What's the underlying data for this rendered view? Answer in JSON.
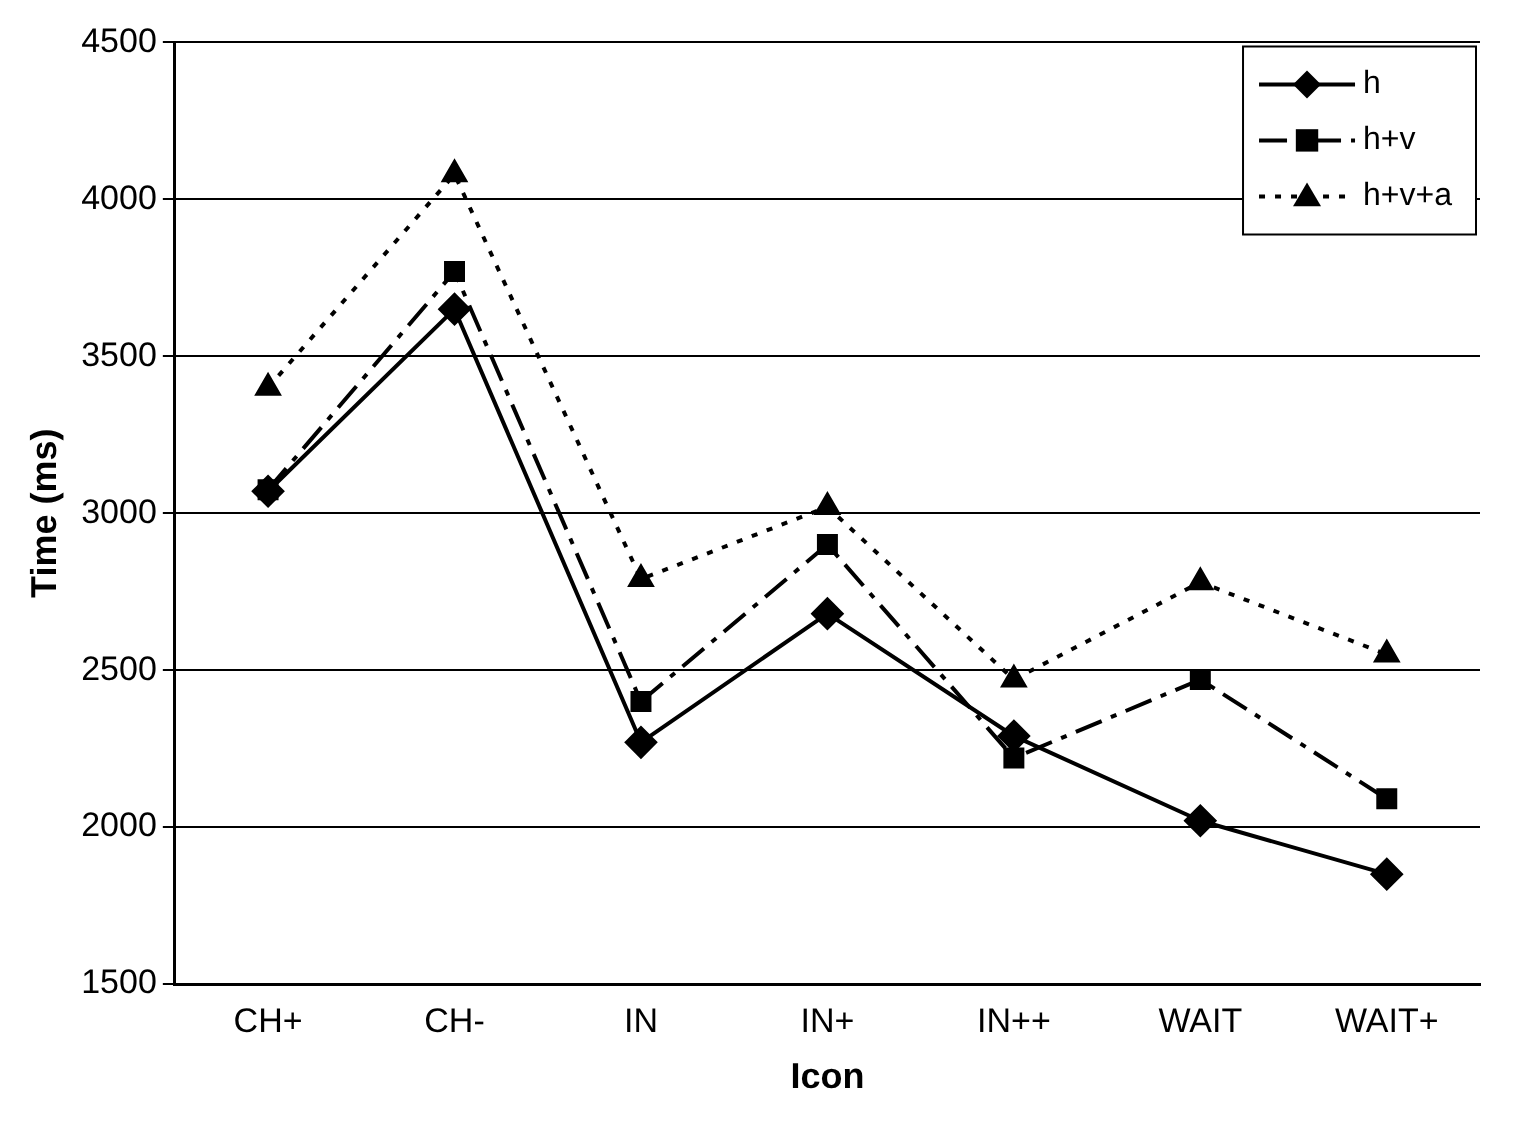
{
  "chart_data": {
    "type": "line",
    "xlabel": "Icon",
    "ylabel": "Time (ms)",
    "categories": [
      "CH+",
      "CH-",
      "IN",
      "IN+",
      "IN++",
      "WAIT",
      "WAIT+"
    ],
    "series": [
      {
        "name": "h",
        "color": "#000000",
        "marker": "diamond",
        "line_style": "solid",
        "values": [
          3070,
          3650,
          2270,
          2680,
          2290,
          2020,
          1850
        ]
      },
      {
        "name": "h+v",
        "color": "#000000",
        "marker": "square",
        "line_style": "dashdot",
        "values": [
          3075,
          3770,
          2400,
          2900,
          2220,
          2470,
          2090
        ]
      },
      {
        "name": "h+v+a",
        "color": "#000000",
        "marker": "triangle",
        "line_style": "dotted",
        "values": [
          3400,
          4080,
          2790,
          3020,
          2470,
          2780,
          2550
        ]
      }
    ],
    "ylim": [
      1500,
      4500
    ],
    "yticks": [
      1500,
      2000,
      2500,
      3000,
      3500,
      4000,
      4500
    ],
    "grid": "y",
    "legend": "top right"
  }
}
